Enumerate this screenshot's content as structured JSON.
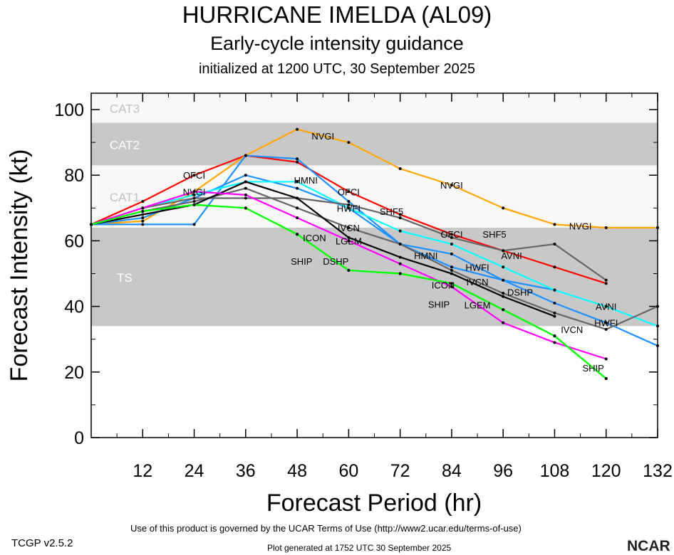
{
  "header": {
    "title": "HURRICANE IMELDA (AL09)",
    "subtitle": "Early-cycle intensity guidance",
    "initialized": "initialized at 1200 UTC, 30 September 2025"
  },
  "footer": {
    "terms": "Use of this product is governed by the UCAR Terms of Use (http://www2.ucar.edu/terms-of-use)",
    "generated": "Plot generated at 1752 UTC   30 September 2025",
    "version": "TCGP v2.5.2",
    "logo": "NCAR"
  },
  "chart_data": {
    "type": "line",
    "xlabel": "Forecast Period (hr)",
    "ylabel": "Forecast Intensity (kt)",
    "xlim": [
      0,
      132
    ],
    "ylim": [
      0,
      105
    ],
    "xticks": [
      12,
      24,
      36,
      48,
      60,
      72,
      84,
      96,
      108,
      120,
      132
    ],
    "yticks": [
      0,
      20,
      40,
      60,
      80,
      100
    ],
    "bands": [
      {
        "label": "TS",
        "from": 34,
        "to": 64,
        "color": "#c8c8c8"
      },
      {
        "label": "CAT1",
        "from": 64,
        "to": 83,
        "color": "#f8f8f8"
      },
      {
        "label": "CAT2",
        "from": 83,
        "to": 96,
        "color": "#c8c8c8"
      },
      {
        "label": "CAT3",
        "from": 96,
        "to": 105,
        "color": "#f8f8f8"
      }
    ],
    "series": [
      {
        "name": "OFCI",
        "color": "#ff0000",
        "x": [
          0,
          12,
          24,
          36,
          48,
          60,
          72,
          84,
          96,
          108,
          120
        ],
        "y": [
          65,
          72,
          80,
          86,
          84,
          75,
          68,
          62,
          57,
          52,
          47
        ],
        "label_at": [
          24,
          60,
          84
        ]
      },
      {
        "name": "NVGI",
        "color": "#ffa500",
        "x": [
          0,
          12,
          24,
          36,
          48,
          60,
          72,
          84,
          96,
          108,
          120,
          132
        ],
        "y": [
          65,
          66,
          75,
          86,
          94,
          90,
          82,
          77,
          70,
          65,
          64,
          64
        ],
        "label_at": [
          24,
          54,
          84,
          114
        ]
      },
      {
        "name": "HMNI",
        "color": "#1e90ff",
        "x": [
          0,
          12,
          24,
          36,
          48,
          60,
          72,
          84,
          96,
          108
        ],
        "y": [
          65,
          65,
          65,
          86,
          85,
          72,
          59,
          52,
          48,
          45
        ],
        "label_at": [
          54,
          78
        ]
      },
      {
        "name": "HWFI",
        "color": "#1e90ff",
        "x": [
          0,
          12,
          24,
          36,
          48,
          60,
          72,
          84,
          96,
          108,
          120,
          132
        ],
        "y": [
          65,
          67,
          73,
          80,
          76,
          70,
          59,
          56,
          48,
          41,
          35,
          28
        ],
        "label_at": [
          60,
          90,
          120
        ]
      },
      {
        "name": "AVNI",
        "color": "#00ffff",
        "x": [
          0,
          12,
          24,
          36,
          48,
          60,
          72,
          84,
          96,
          108,
          120,
          132
        ],
        "y": [
          65,
          70,
          74,
          78,
          78,
          70,
          63,
          59,
          52,
          45,
          40,
          34
        ],
        "label_at": [
          90,
          120
        ]
      },
      {
        "name": "SHF5",
        "color": "#666666",
        "x": [
          0,
          12,
          24,
          36,
          48,
          60,
          72,
          84,
          96,
          108,
          120
        ],
        "y": [
          65,
          70,
          73,
          73,
          73,
          71,
          67,
          61,
          57,
          59,
          48
        ],
        "label_at": [
          66,
          90
        ]
      },
      {
        "name": "IVCN",
        "color": "#666666",
        "x": [
          0,
          12,
          24,
          36,
          48,
          60,
          72,
          84,
          96,
          108,
          120,
          132
        ],
        "y": [
          65,
          69,
          72,
          76,
          70,
          64,
          59,
          51,
          44,
          38,
          33,
          40
        ],
        "label_at": [
          60,
          90,
          120
        ]
      },
      {
        "name": "ICON",
        "color": "#000000",
        "x": [
          0,
          12,
          24,
          36,
          48,
          60,
          72,
          84,
          96,
          108
        ],
        "y": [
          65,
          68,
          71,
          78,
          73,
          61,
          55,
          50,
          43,
          37
        ],
        "label_at": [
          60,
          90
        ]
      },
      {
        "name": "LGEM",
        "color": "#ff00ff",
        "x": [
          0,
          12,
          24,
          36,
          48,
          60,
          72,
          84,
          96,
          108,
          120
        ],
        "y": [
          65,
          70,
          75,
          74,
          67,
          60,
          53,
          46,
          35,
          29,
          24
        ],
        "label_at": [
          60,
          90
        ]
      },
      {
        "name": "DSHP",
        "color": "#00ff00",
        "x": [
          0,
          12,
          24,
          36,
          48,
          60,
          72,
          84,
          96,
          108,
          120
        ],
        "y": [
          65,
          69,
          71,
          70,
          62,
          51,
          50,
          47,
          39,
          31,
          18
        ],
        "label_at": [
          57,
          88
        ]
      },
      {
        "name": "SHIP",
        "color": "#00ff00",
        "x": [
          0,
          12,
          24,
          36,
          48,
          60,
          72,
          84,
          96,
          108,
          120
        ],
        "y": [
          65,
          69,
          71,
          70,
          62,
          51,
          50,
          47,
          39,
          31,
          18
        ],
        "label_at": [
          57,
          89,
          117
        ]
      }
    ]
  }
}
